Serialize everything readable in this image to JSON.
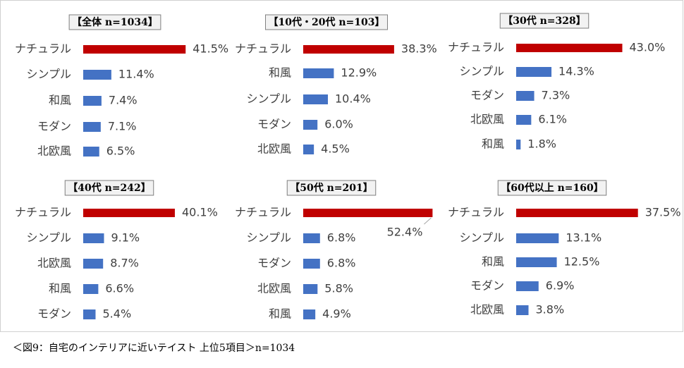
{
  "chart_data": [
    {
      "type": "bar",
      "title": "【全体 n=1034】",
      "categories": [
        "ナチュラル",
        "シンプル",
        "和風",
        "モダン",
        "北欧風"
      ],
      "values": [
        41.5,
        11.4,
        7.4,
        7.1,
        6.5
      ],
      "value_labels": [
        "41.5%",
        "11.4%",
        "7.4%",
        "7.1%",
        "6.5%"
      ],
      "colors": [
        "#c00000",
        "#4472c4",
        "#4472c4",
        "#4472c4",
        "#4472c4"
      ],
      "xlim": [
        0,
        50
      ]
    },
    {
      "type": "bar",
      "title": "【10代・20代 n=103】",
      "categories": [
        "ナチュラル",
        "和風",
        "シンプル",
        "モダン",
        "北欧風"
      ],
      "values": [
        38.3,
        12.9,
        10.4,
        6.0,
        4.5
      ],
      "value_labels": [
        "38.3%",
        "12.9%",
        "10.4%",
        "6.0%",
        "4.5%"
      ],
      "colors": [
        "#c00000",
        "#4472c4",
        "#4472c4",
        "#4472c4",
        "#4472c4"
      ],
      "xlim": [
        0,
        52
      ]
    },
    {
      "type": "bar",
      "title": "【30代 n=328】",
      "categories": [
        "ナチュラル",
        "シンプル",
        "モダン",
        "北欧風",
        "和風"
      ],
      "values": [
        43.0,
        14.3,
        7.3,
        6.1,
        1.8
      ],
      "value_labels": [
        "43.0%",
        "14.3%",
        "7.3%",
        "6.1%",
        "1.8%"
      ],
      "colors": [
        "#c00000",
        "#4472c4",
        "#4472c4",
        "#4472c4",
        "#4472c4"
      ],
      "xlim": [
        0,
        50
      ]
    },
    {
      "type": "bar",
      "title": "【40代 n=242】",
      "categories": [
        "ナチュラル",
        "シンプル",
        "北欧風",
        "和風",
        "モダン"
      ],
      "values": [
        40.1,
        9.1,
        8.7,
        6.6,
        5.4
      ],
      "value_labels": [
        "40.1%",
        "9.1%",
        "8.7%",
        "6.6%",
        "5.4%"
      ],
      "colors": [
        "#c00000",
        "#4472c4",
        "#4472c4",
        "#4472c4",
        "#4472c4"
      ],
      "xlim": [
        0,
        54
      ]
    },
    {
      "type": "bar",
      "title": "【50代 n=201】",
      "categories": [
        "ナチュラル",
        "シンプル",
        "モダン",
        "北欧風",
        "和風"
      ],
      "values": [
        52.4,
        6.8,
        6.8,
        5.8,
        4.9
      ],
      "value_labels": [
        "52.4%",
        "6.8%",
        "6.8%",
        "5.8%",
        "4.9%"
      ],
      "colors": [
        "#c00000",
        "#4472c4",
        "#4472c4",
        "#4472c4",
        "#4472c4"
      ],
      "xlim": [
        0,
        50
      ]
    },
    {
      "type": "bar",
      "title": "【60代以上 n=160】",
      "categories": [
        "ナチュラル",
        "シンプル",
        "和風",
        "モダン",
        "北欧風"
      ],
      "values": [
        37.5,
        13.1,
        12.5,
        6.9,
        3.8
      ],
      "value_labels": [
        "37.5%",
        "13.1%",
        "12.5%",
        "6.9%",
        "3.8%"
      ],
      "colors": [
        "#c00000",
        "#4472c4",
        "#4472c4",
        "#4472c4",
        "#4472c4"
      ],
      "xlim": [
        0,
        38
      ]
    }
  ],
  "caption": "＜図9：自宅のインテリアに近いテイスト 上位5項目＞n=1034"
}
